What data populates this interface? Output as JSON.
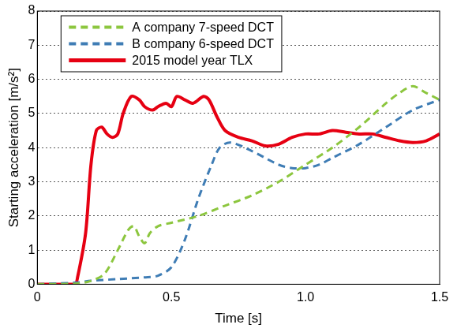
{
  "chart_data": {
    "type": "line",
    "x_label": "Time [s]",
    "y_label": "Starting acceleration [m/s²]",
    "xlim": [
      0,
      1.5
    ],
    "xticks": [
      0,
      0.5,
      {
        "value": 1,
        "label": "1.0"
      },
      1.5
    ],
    "ylim": [
      0,
      8
    ],
    "yticks": [
      0,
      1,
      2,
      3,
      4,
      5,
      6,
      7,
      8
    ],
    "grid": true,
    "legend": "upper left",
    "series": [
      {
        "name": "A company 7-speed DCT",
        "color": "#8cc63e",
        "line_style": "dashed",
        "x": [
          0,
          0.15,
          0.2,
          0.25,
          0.3,
          0.34,
          0.36,
          0.38,
          0.4,
          0.42,
          0.45,
          0.5,
          0.6,
          0.7,
          0.8,
          0.9,
          1.0,
          1.1,
          1.2,
          1.3,
          1.35,
          1.4,
          1.45,
          1.5
        ],
        "values": [
          0,
          0.02,
          0.1,
          0.3,
          1.0,
          1.6,
          1.7,
          1.4,
          1.2,
          1.5,
          1.7,
          1.8,
          2.0,
          2.3,
          2.6,
          3.0,
          3.5,
          4.0,
          4.6,
          5.3,
          5.6,
          5.8,
          5.6,
          5.4
        ]
      },
      {
        "name": "B company 6-speed DCT",
        "color": "#3f7db5",
        "line_style": "dashed",
        "x": [
          0,
          0.15,
          0.2,
          0.3,
          0.4,
          0.45,
          0.5,
          0.55,
          0.6,
          0.65,
          0.68,
          0.72,
          0.8,
          0.9,
          0.95,
          1.0,
          1.05,
          1.1,
          1.2,
          1.3,
          1.4,
          1.5
        ],
        "values": [
          0,
          0.05,
          0.1,
          0.15,
          0.2,
          0.25,
          0.5,
          1.3,
          2.5,
          3.5,
          4.0,
          4.15,
          3.9,
          3.5,
          3.4,
          3.4,
          3.5,
          3.7,
          4.1,
          4.6,
          5.1,
          5.4
        ]
      },
      {
        "name": "2015 model year TLX",
        "color": "#e60012",
        "line_style": "solid",
        "x": [
          0,
          0.14,
          0.15,
          0.18,
          0.2,
          0.22,
          0.24,
          0.26,
          0.28,
          0.3,
          0.32,
          0.35,
          0.38,
          0.4,
          0.43,
          0.45,
          0.48,
          0.5,
          0.52,
          0.55,
          0.58,
          0.62,
          0.64,
          0.67,
          0.7,
          0.75,
          0.8,
          0.85,
          0.9,
          0.95,
          1.0,
          1.05,
          1.1,
          1.15,
          1.2,
          1.25,
          1.3,
          1.35,
          1.4,
          1.45,
          1.5
        ],
        "values": [
          0,
          0,
          0.2,
          1.5,
          3.5,
          4.5,
          4.6,
          4.4,
          4.3,
          4.4,
          5.0,
          5.5,
          5.4,
          5.2,
          5.1,
          5.2,
          5.3,
          5.2,
          5.5,
          5.4,
          5.3,
          5.5,
          5.4,
          4.9,
          4.5,
          4.3,
          4.2,
          4.05,
          4.1,
          4.3,
          4.4,
          4.4,
          4.5,
          4.45,
          4.4,
          4.4,
          4.3,
          4.2,
          4.15,
          4.2,
          4.4
        ]
      }
    ]
  }
}
